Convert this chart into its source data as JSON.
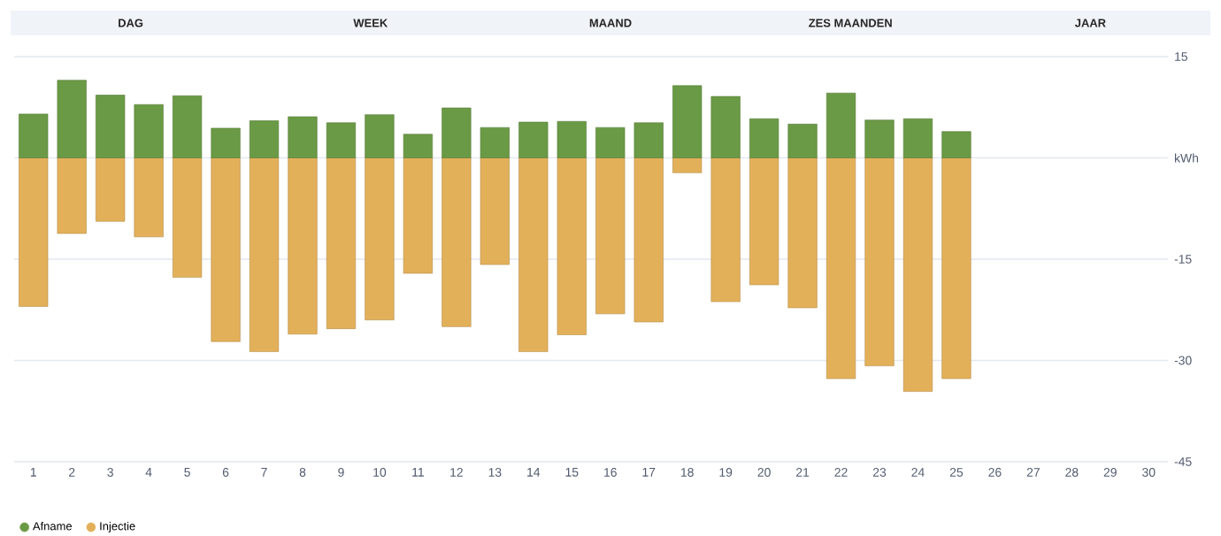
{
  "chart_data": {
    "type": "bar",
    "stacked": true,
    "categories": [
      "1",
      "2",
      "3",
      "4",
      "5",
      "6",
      "7",
      "8",
      "9",
      "10",
      "11",
      "12",
      "13",
      "14",
      "15",
      "16",
      "17",
      "18",
      "19",
      "20",
      "21",
      "22",
      "23",
      "24",
      "25",
      "26",
      "27",
      "28",
      "29",
      "30"
    ],
    "series": [
      {
        "name": "Afname",
        "color": "#6a9a45",
        "values": [
          6.5,
          11.5,
          9.3,
          7.9,
          9.2,
          4.4,
          5.5,
          6.1,
          5.2,
          6.4,
          3.5,
          7.4,
          4.5,
          5.3,
          5.4,
          4.5,
          5.2,
          10.7,
          9.1,
          5.8,
          5.0,
          9.6,
          5.6,
          5.8,
          3.9,
          null,
          null,
          null,
          null,
          null
        ]
      },
      {
        "name": "Injectie",
        "color": "#e3b05a",
        "values": [
          -22.0,
          -11.2,
          -9.4,
          -11.7,
          -17.7,
          -27.2,
          -28.7,
          -26.1,
          -25.3,
          -24.0,
          -17.1,
          -25.0,
          -15.8,
          -28.7,
          -26.2,
          -23.1,
          -24.3,
          -2.2,
          -21.3,
          -18.8,
          -22.2,
          -32.7,
          -30.8,
          -34.6,
          -32.7,
          null,
          null,
          null,
          null,
          null
        ]
      }
    ],
    "ylim": [
      -45,
      15
    ],
    "yticks": [
      15,
      {
        "value": 0,
        "label": "kWh"
      },
      -15,
      -30,
      -45
    ],
    "grid": "y",
    "legend": "bottom left",
    "annotations": [
      "DAG",
      "WEEK",
      "MAAND",
      "ZES MAANDEN",
      "JAAR"
    ]
  }
}
